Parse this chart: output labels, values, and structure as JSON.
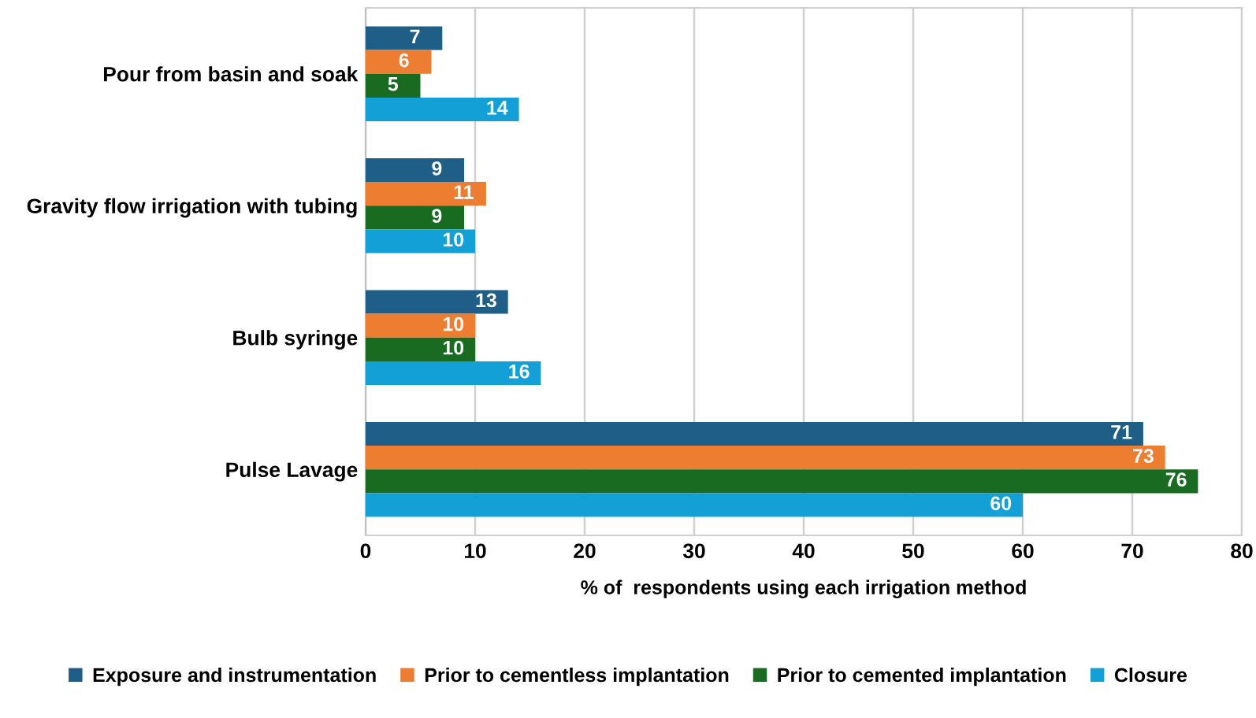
{
  "chart_data": {
    "type": "bar",
    "orientation": "horizontal",
    "xlabel": "% of  respondents using each irrigation method",
    "categories": [
      "Pour from basin and soak",
      "Gravity flow irrigation with tubing",
      "Bulb syringe",
      "Pulse Lavage"
    ],
    "series": [
      {
        "name": "Exposure and instrumentation",
        "color": "#1f5f87",
        "values": [
          7,
          9,
          13,
          71
        ]
      },
      {
        "name": "Prior to cementless implantation",
        "color": "#ed7d31",
        "values": [
          6,
          11,
          10,
          73
        ]
      },
      {
        "name": "Prior to cemented implantation",
        "color": "#1a6b22",
        "values": [
          5,
          9,
          10,
          76
        ]
      },
      {
        "name": "Closure",
        "color": "#12a0d7",
        "values": [
          14,
          10,
          16,
          60
        ]
      }
    ],
    "xlim": [
      0,
      80
    ],
    "xticks": [
      0,
      10,
      20,
      30,
      40,
      50,
      60,
      70,
      80
    ],
    "grid": "x",
    "legend": "bottom",
    "data_labels": true
  }
}
